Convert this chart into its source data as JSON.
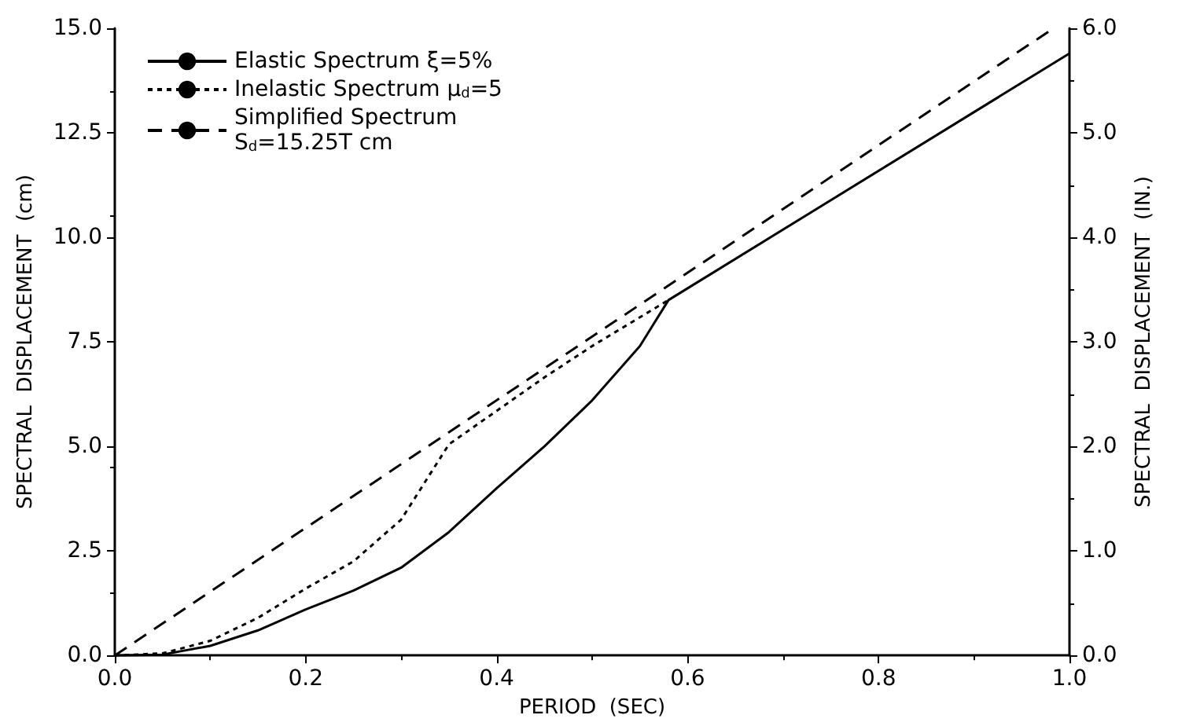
{
  "chart_data": {
    "type": "line",
    "xlabel": "PERIOD  (SEC)",
    "ylabel": "SPECTRAL  DISPLACEMENT  (cm)",
    "y2label": "SPECTRAL  DISPLACEMENT  (IN.)",
    "xlim": [
      0,
      1
    ],
    "xticks": [
      {
        "value": 0,
        "label": "0.0"
      },
      {
        "value": 0.2,
        "label": "0.2"
      },
      {
        "value": 0.4,
        "label": "0.4"
      },
      {
        "value": 0.6,
        "label": "0.6"
      },
      {
        "value": 0.8,
        "label": "0.8"
      },
      {
        "value": 1,
        "label": "1.0"
      }
    ],
    "ylim": [
      0,
      15
    ],
    "yticks": [
      {
        "value": 0,
        "label": "0.0"
      },
      {
        "value": 2.5,
        "label": "2.5"
      },
      {
        "value": 5,
        "label": "5.0"
      },
      {
        "value": 7.5,
        "label": "7.5"
      },
      {
        "value": 10,
        "label": "10.0"
      },
      {
        "value": 12.5,
        "label": "12.5"
      },
      {
        "value": 15,
        "label": "15.0"
      }
    ],
    "y2lim": [
      0,
      6
    ],
    "y2ticks": [
      {
        "value": 0,
        "label": "0.0"
      },
      {
        "value": 1,
        "label": "1.0"
      },
      {
        "value": 2,
        "label": "2.0"
      },
      {
        "value": 3,
        "label": "3.0"
      },
      {
        "value": 4,
        "label": "4.0"
      },
      {
        "value": 5,
        "label": "5.0"
      },
      {
        "value": 6,
        "label": "6.0"
      }
    ],
    "grid": false,
    "legend": "top left",
    "marker": "none",
    "series": [
      {
        "name": "Elastic Spectrum ξ=5%",
        "color": "#000000",
        "line_style": "solid",
        "x": [
          0,
          0.05,
          0.1,
          0.15,
          0.2,
          0.25,
          0.3,
          0.35,
          0.4,
          0.45,
          0.5,
          0.55,
          0.58,
          1.0
        ],
        "values": [
          0,
          0.02,
          0.23,
          0.6,
          1.1,
          1.55,
          2.1,
          2.95,
          4.0,
          5.0,
          6.1,
          7.4,
          8.5,
          14.4
        ]
      },
      {
        "name": "Inelastic Spectrum μ$_{d}$=5",
        "color": "#000000",
        "line_style": "dotted",
        "x": [
          0,
          0.05,
          0.1,
          0.15,
          0.2,
          0.25,
          0.3,
          0.35,
          0.4,
          0.45,
          0.5,
          0.58
        ],
        "values": [
          0,
          0.05,
          0.35,
          0.9,
          1.6,
          2.25,
          3.25,
          5.05,
          5.85,
          6.65,
          7.4,
          8.5
        ]
      },
      {
        "name": "Simplified Spectrum\nS$_{d}$=15.25T cm",
        "color": "#000000",
        "line_style": "dashed",
        "x": [
          0,
          0.98
        ],
        "values": [
          0,
          14.95
        ]
      }
    ]
  }
}
